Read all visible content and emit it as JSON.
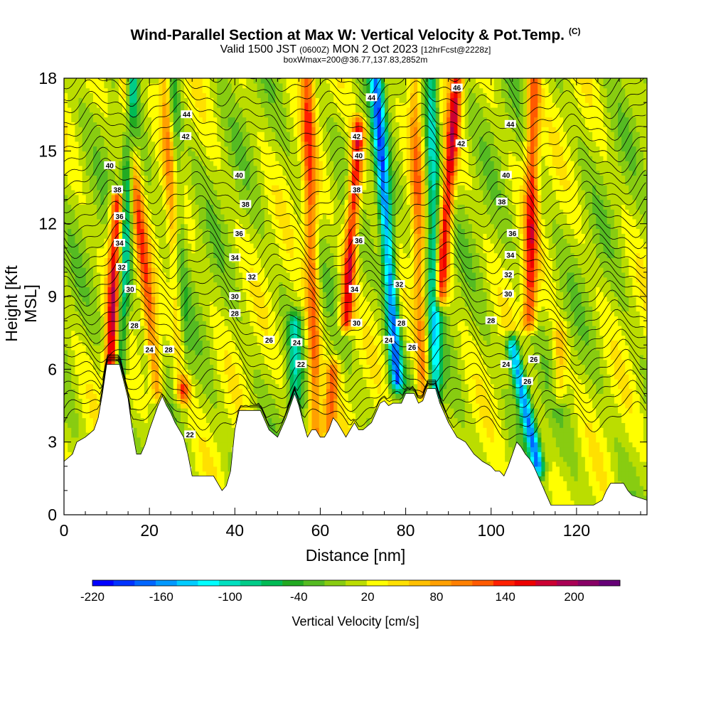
{
  "title": "Wind-Parallel Section at Max W: Vertical Velocity & Pot.Temp.",
  "title_mark": "(C)",
  "subtitle_main": "Valid 1500 JST",
  "subtitle_z": "(0600Z)",
  "subtitle_date": "MON 2 Oct 2023",
  "subtitle_fcst": "[12hrFcst@2228z]",
  "subtitle_box": "boxWmax=200@36.77,137.83,2852m",
  "colors": {
    "background": "#ffffff",
    "terrain": "#ffffff",
    "contour": "#000000",
    "colorscale": [
      "#0000ff",
      "#0033ff",
      "#0066ff",
      "#0099ff",
      "#00ccff",
      "#00ffff",
      "#00e0c0",
      "#00cc88",
      "#00bb55",
      "#22aa22",
      "#55bb22",
      "#88cc11",
      "#bbdd00",
      "#ffff00",
      "#ffe000",
      "#ffc000",
      "#ffa000",
      "#ff8000",
      "#ff5a00",
      "#ff2000",
      "#ee0000",
      "#cc0033",
      "#aa0055",
      "#880066",
      "#660077"
    ]
  },
  "chart_data": {
    "type": "heatmap",
    "xlabel": "Distance [nm]",
    "ylabel": "Height [Kft MSL]",
    "xlim": [
      0,
      136.5
    ],
    "ylim": [
      0,
      18
    ],
    "x_ticks": [
      0,
      20,
      40,
      60,
      80,
      100,
      120
    ],
    "y_ticks": [
      0,
      3,
      6,
      9,
      12,
      15,
      18
    ],
    "colorbar": {
      "label": "Vertical Velocity [cm/s]",
      "min": -220,
      "max": 240,
      "step": 20,
      "tick_labels": [
        "-220",
        "-160",
        "-100",
        "-40",
        "20",
        "80",
        "140",
        "200"
      ]
    },
    "updrafts": [
      {
        "x_bottom": 11,
        "x_top": 12.5,
        "z_bottom": 6,
        "z_top": 13,
        "w": 180
      },
      {
        "x_bottom": 22,
        "x_top": 14,
        "z_bottom": 5,
        "z_top": 18,
        "w": 110
      },
      {
        "x_bottom": 28,
        "x_top": 24,
        "z_bottom": 5,
        "z_top": 18,
        "w": 130
      },
      {
        "x_bottom": 59,
        "x_top": 57,
        "z_bottom": 3,
        "z_top": 18,
        "w": 120
      },
      {
        "x_bottom": 66,
        "x_top": 69,
        "z_bottom": 8,
        "z_top": 16,
        "w": 170
      },
      {
        "x_bottom": 62,
        "x_top": 63,
        "z_bottom": 3.5,
        "z_top": 6,
        "w": 100
      },
      {
        "x_bottom": 84,
        "x_top": 82,
        "z_bottom": 5,
        "z_top": 18,
        "w": 90
      },
      {
        "x_bottom": 88,
        "x_top": 92,
        "z_bottom": 9,
        "z_top": 18,
        "w": 170
      },
      {
        "x_bottom": 109,
        "x_top": 110,
        "z_bottom": 8,
        "z_top": 18,
        "w": 140
      },
      {
        "x_bottom": 116,
        "x_top": 116,
        "z_bottom": 5,
        "z_top": 7.5,
        "w": 60
      }
    ],
    "downdrafts": [
      {
        "x_bottom": 13,
        "x_top": 16,
        "z_bottom": 6,
        "z_top": 18,
        "w": -120
      },
      {
        "x_bottom": 28,
        "x_top": 25,
        "z_bottom": 6,
        "z_top": 18,
        "w": -110
      },
      {
        "x_bottom": 54,
        "x_top": 54,
        "z_bottom": 4,
        "z_top": 8,
        "w": -90
      },
      {
        "x_bottom": 78,
        "x_top": 73,
        "z_bottom": 5.5,
        "z_top": 18,
        "w": -200
      },
      {
        "x_bottom": 87,
        "x_top": 86,
        "z_bottom": 5,
        "z_top": 18,
        "w": -130
      },
      {
        "x_bottom": 111,
        "x_top": 105,
        "z_bottom": 2,
        "z_top": 7,
        "w": -200
      }
    ],
    "terrain_profile": [
      [
        0,
        2.2
      ],
      [
        2,
        2.5
      ],
      [
        3,
        3
      ],
      [
        5,
        3.2
      ],
      [
        7,
        3.5
      ],
      [
        8,
        4
      ],
      [
        9,
        5
      ],
      [
        10,
        6.2
      ],
      [
        13,
        6.2
      ],
      [
        14,
        5.5
      ],
      [
        15,
        4.8
      ],
      [
        16,
        3.5
      ],
      [
        17,
        2.5
      ],
      [
        18,
        2.5
      ],
      [
        19,
        2.9
      ],
      [
        20,
        3.5
      ],
      [
        21,
        4
      ],
      [
        22,
        4.5
      ],
      [
        23,
        4.9
      ],
      [
        24,
        4.5
      ],
      [
        25,
        4.2
      ],
      [
        26,
        3.8
      ],
      [
        27,
        3.5
      ],
      [
        28,
        3.2
      ],
      [
        29,
        2.5
      ],
      [
        30,
        1.6
      ],
      [
        32,
        1.6
      ],
      [
        35,
        1.6
      ],
      [
        36,
        1.3
      ],
      [
        37,
        1.0
      ],
      [
        38,
        1.2
      ],
      [
        39,
        1.8
      ],
      [
        40,
        3.5
      ],
      [
        41,
        4.3
      ],
      [
        46,
        4.3
      ],
      [
        48,
        3.5
      ],
      [
        50,
        3.2
      ],
      [
        52,
        4.0
      ],
      [
        54,
        5.0
      ],
      [
        55,
        4.5
      ],
      [
        56,
        3.8
      ],
      [
        57,
        3.2
      ],
      [
        58,
        3.5
      ],
      [
        59,
        3.5
      ],
      [
        60,
        3.2
      ],
      [
        61,
        3.2
      ],
      [
        62,
        3.5
      ],
      [
        63,
        4.0
      ],
      [
        64,
        3.8
      ],
      [
        65,
        3.5
      ],
      [
        66,
        3.2
      ],
      [
        67,
        3.5
      ],
      [
        68,
        3.8
      ],
      [
        69,
        3.5
      ],
      [
        70,
        3.5
      ],
      [
        72,
        3.8
      ],
      [
        73,
        4.2
      ],
      [
        74,
        4.6
      ],
      [
        75,
        4.7
      ],
      [
        76,
        4.5
      ],
      [
        77,
        4.6
      ],
      [
        79,
        4.6
      ],
      [
        80,
        5.0
      ],
      [
        81,
        5.0
      ],
      [
        82,
        5.0
      ],
      [
        83,
        4.6
      ],
      [
        84,
        4.7
      ],
      [
        85,
        5.2
      ],
      [
        87,
        5.2
      ],
      [
        88,
        4.6
      ],
      [
        89,
        4.2
      ],
      [
        90,
        3.8
      ],
      [
        91,
        3.5
      ],
      [
        92,
        3.2
      ],
      [
        94,
        3.0
      ],
      [
        96,
        2.5
      ],
      [
        98,
        2.2
      ],
      [
        100,
        2.0
      ],
      [
        101,
        1.8
      ],
      [
        102,
        1.8
      ],
      [
        103,
        1.6
      ],
      [
        104,
        2.0
      ],
      [
        105,
        2.5
      ],
      [
        106,
        3.0
      ],
      [
        107,
        2.8
      ],
      [
        108,
        2.5
      ],
      [
        109,
        2.3
      ],
      [
        110,
        2.0
      ],
      [
        111,
        1.6
      ],
      [
        112,
        1.2
      ],
      [
        113,
        0.8
      ],
      [
        114,
        0.4
      ],
      [
        116,
        0.4
      ],
      [
        118,
        0.4
      ],
      [
        120,
        0.4
      ],
      [
        122,
        0.4
      ],
      [
        124,
        0.4
      ],
      [
        126,
        0.6
      ],
      [
        127,
        1.0
      ],
      [
        128,
        1.3
      ],
      [
        131,
        1.3
      ],
      [
        132,
        1.0
      ],
      [
        133,
        0.8
      ],
      [
        136.5,
        0.6
      ]
    ],
    "isentrope_labels": [
      {
        "text": "40",
        "x": 10.7,
        "z": 14.4
      },
      {
        "text": "38",
        "x": 12.5,
        "z": 13.4
      },
      {
        "text": "36",
        "x": 13,
        "z": 12.3
      },
      {
        "text": "34",
        "x": 13,
        "z": 11.2
      },
      {
        "text": "32",
        "x": 13.5,
        "z": 10.2
      },
      {
        "text": "30",
        "x": 15.5,
        "z": 9.3
      },
      {
        "text": "28",
        "x": 16.5,
        "z": 7.8
      },
      {
        "text": "24",
        "x": 20,
        "z": 6.8
      },
      {
        "text": "28",
        "x": 24.5,
        "z": 6.8
      },
      {
        "text": "44",
        "x": 28.7,
        "z": 16.5
      },
      {
        "text": "42",
        "x": 28.5,
        "z": 15.6
      },
      {
        "text": "40",
        "x": 41,
        "z": 14.0
      },
      {
        "text": "38",
        "x": 42.5,
        "z": 12.8
      },
      {
        "text": "36",
        "x": 41,
        "z": 11.6
      },
      {
        "text": "34",
        "x": 40,
        "z": 10.6
      },
      {
        "text": "32",
        "x": 44,
        "z": 9.8
      },
      {
        "text": "30",
        "x": 40,
        "z": 9.0
      },
      {
        "text": "28",
        "x": 40,
        "z": 8.3
      },
      {
        "text": "26",
        "x": 48,
        "z": 7.2
      },
      {
        "text": "24",
        "x": 54.5,
        "z": 7.1
      },
      {
        "text": "22",
        "x": 55.5,
        "z": 6.2
      },
      {
        "text": "22",
        "x": 29.5,
        "z": 3.3
      },
      {
        "text": "44",
        "x": 72,
        "z": 17.2
      },
      {
        "text": "42",
        "x": 68.5,
        "z": 15.6
      },
      {
        "text": "40",
        "x": 69,
        "z": 14.8
      },
      {
        "text": "38",
        "x": 68.5,
        "z": 13.4
      },
      {
        "text": "36",
        "x": 69,
        "z": 11.3
      },
      {
        "text": "34",
        "x": 68,
        "z": 9.3
      },
      {
        "text": "30",
        "x": 68.5,
        "z": 7.9
      },
      {
        "text": "32",
        "x": 78.5,
        "z": 9.5
      },
      {
        "text": "28",
        "x": 79,
        "z": 7.9
      },
      {
        "text": "24",
        "x": 76,
        "z": 7.2
      },
      {
        "text": "26",
        "x": 81.5,
        "z": 6.9
      },
      {
        "text": "46",
        "x": 92,
        "z": 17.6
      },
      {
        "text": "44",
        "x": 104.5,
        "z": 16.1
      },
      {
        "text": "42",
        "x": 93,
        "z": 15.3
      },
      {
        "text": "40",
        "x": 103.5,
        "z": 14.0
      },
      {
        "text": "38",
        "x": 102.5,
        "z": 12.9
      },
      {
        "text": "36",
        "x": 105,
        "z": 11.6
      },
      {
        "text": "34",
        "x": 104.5,
        "z": 10.7
      },
      {
        "text": "32",
        "x": 104,
        "z": 9.9
      },
      {
        "text": "30",
        "x": 104,
        "z": 9.1
      },
      {
        "text": "28",
        "x": 100,
        "z": 8.0
      },
      {
        "text": "24",
        "x": 103.5,
        "z": 6.2
      },
      {
        "text": "26",
        "x": 110,
        "z": 6.4
      },
      {
        "text": "26",
        "x": 108.5,
        "z": 5.5
      }
    ]
  }
}
